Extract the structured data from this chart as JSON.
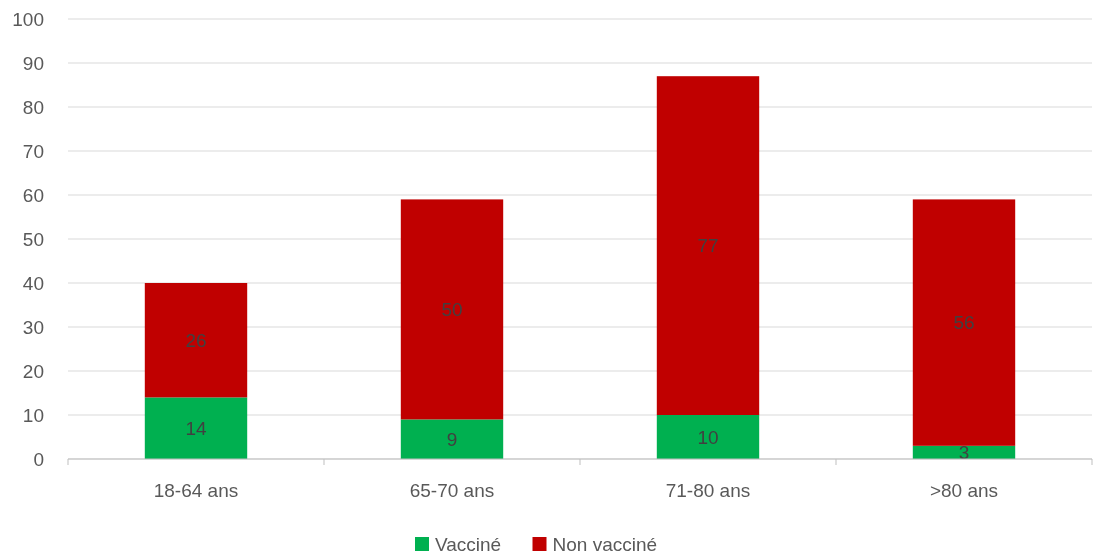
{
  "chart_data": {
    "type": "bar",
    "stacked": true,
    "categories": [
      "18-64 ans",
      "65-70 ans",
      "71-80 ans",
      ">80 ans"
    ],
    "series": [
      {
        "name": "Vacciné",
        "color": "#00b050",
        "values": [
          14,
          9,
          10,
          3
        ]
      },
      {
        "name": "Non vacciné",
        "color": "#c00000",
        "values": [
          26,
          50,
          77,
          56
        ]
      }
    ],
    "ylim": [
      0,
      100
    ],
    "yticks": [
      0,
      10,
      20,
      30,
      40,
      50,
      60,
      70,
      80,
      90,
      100
    ],
    "grid": "y",
    "legend": "bottom",
    "data_labels": true
  }
}
